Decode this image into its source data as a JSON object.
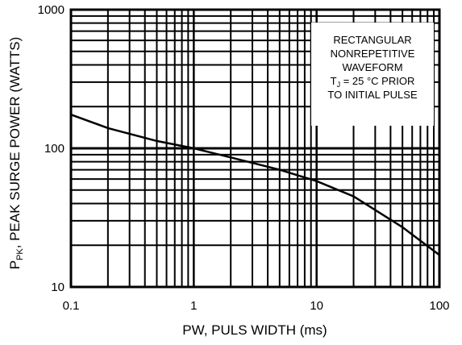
{
  "chart_data": {
    "type": "line",
    "title": "",
    "xlabel": "PW, PULS WIDTH (ms)",
    "ylabel": {
      "prefix": "P",
      "subscript": "PK",
      "text": ", PEAK SURGE POWER (WATTS)"
    },
    "x_scale": "log",
    "y_scale": "log",
    "xlim": [
      0.1,
      100
    ],
    "ylim": [
      10,
      1000
    ],
    "x_tick_labels": [
      "0.1",
      "1",
      "10",
      "100"
    ],
    "y_tick_labels": [
      "10",
      "100",
      "1000"
    ],
    "grid": true,
    "legend": "none",
    "annotation": {
      "lines": [
        "RECTANGULAR",
        "NONREPETITIVE",
        "WAVEFORM"
      ],
      "line4": {
        "prefix": "T",
        "subscript": "J",
        "text": " = 25 °C PRIOR"
      },
      "line5": "TO INITIAL PULSE",
      "placement": "top-right"
    },
    "series": [
      {
        "x": [
          0.1,
          0.2,
          0.5,
          1,
          2,
          5,
          10,
          20,
          50,
          100
        ],
        "y": [
          175,
          140,
          113,
          100,
          86,
          70,
          58,
          45,
          27,
          17
        ]
      }
    ]
  }
}
